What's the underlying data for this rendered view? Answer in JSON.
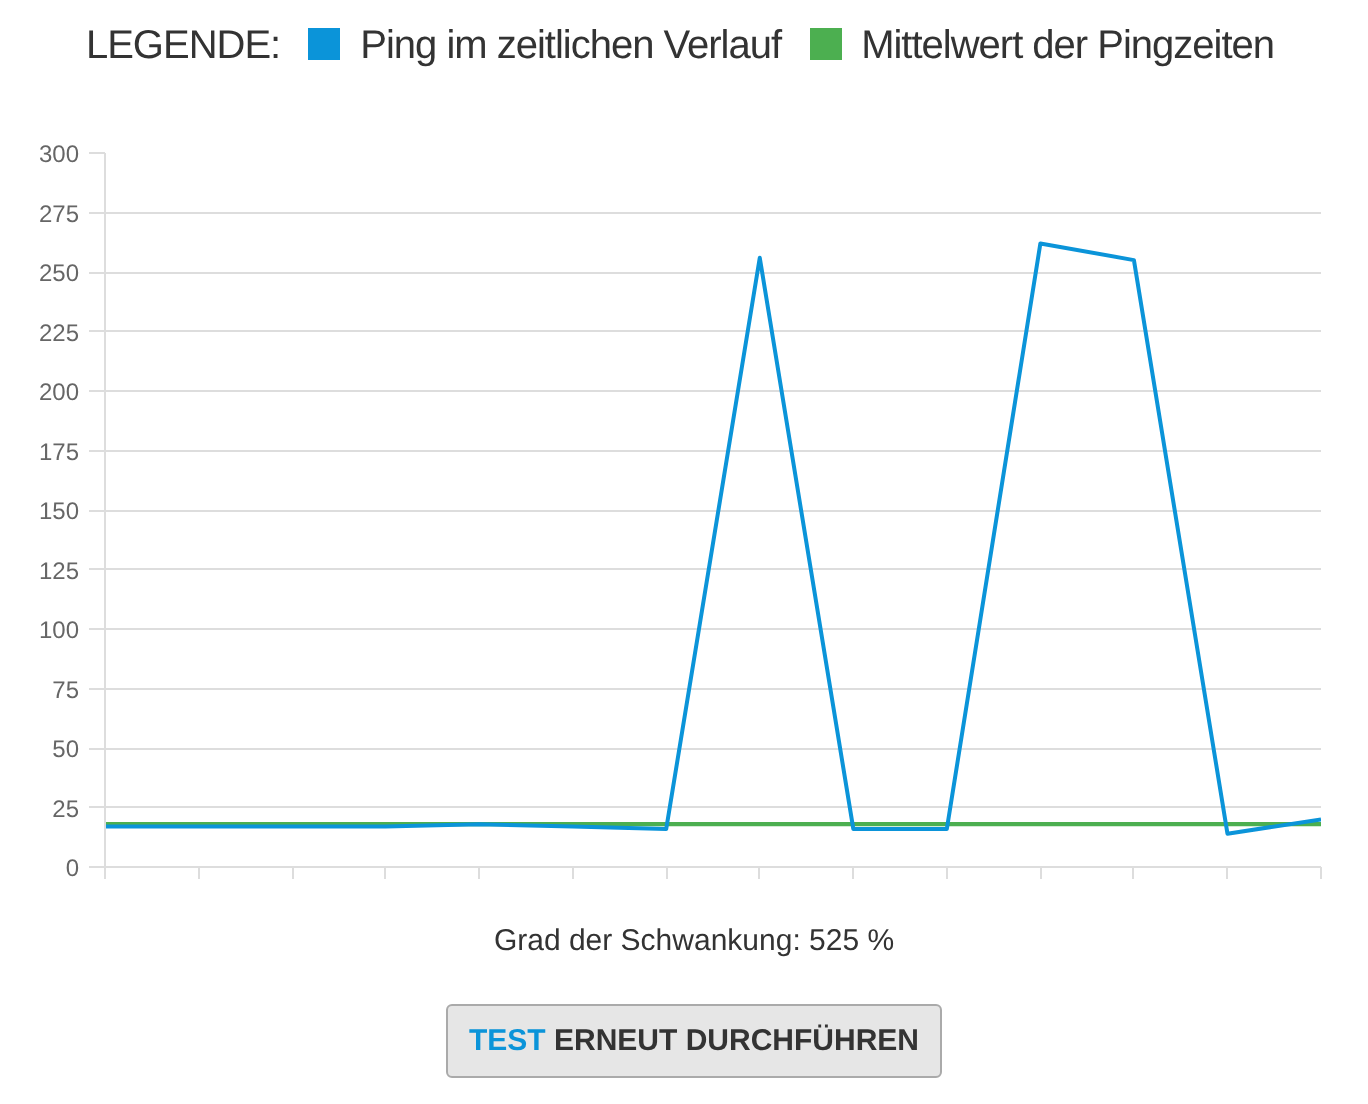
{
  "chart_data": {
    "type": "line",
    "legend_title": "LEGENDE:",
    "categories": [
      null,
      null,
      null,
      null,
      null,
      null,
      null,
      null,
      null,
      null,
      null,
      null,
      null,
      null
    ],
    "series": [
      {
        "name": "Ping im zeitlichen Verlauf",
        "color": "#0b94d9",
        "values": [
          17,
          17,
          17,
          17,
          18,
          17,
          16,
          256,
          16,
          16,
          262,
          255,
          14,
          20
        ]
      },
      {
        "name": "Mittelwert der Pingzeiten",
        "color": "#4caf50",
        "values": [
          18,
          18,
          18,
          18,
          18,
          18,
          18,
          18,
          18,
          18,
          18,
          18,
          18,
          18
        ]
      }
    ],
    "ylim": [
      0,
      300
    ],
    "yticks": [
      0,
      25,
      50,
      75,
      100,
      125,
      150,
      175,
      200,
      225,
      250,
      275,
      300
    ],
    "grid": "y",
    "legend": "top",
    "tick_labels": "y",
    "line_style": "solid",
    "marker": "none",
    "annotations": [
      "Grad der Schwankung: 525 %",
      "TEST ERNEUT DURCHFÜHREN"
    ]
  }
}
